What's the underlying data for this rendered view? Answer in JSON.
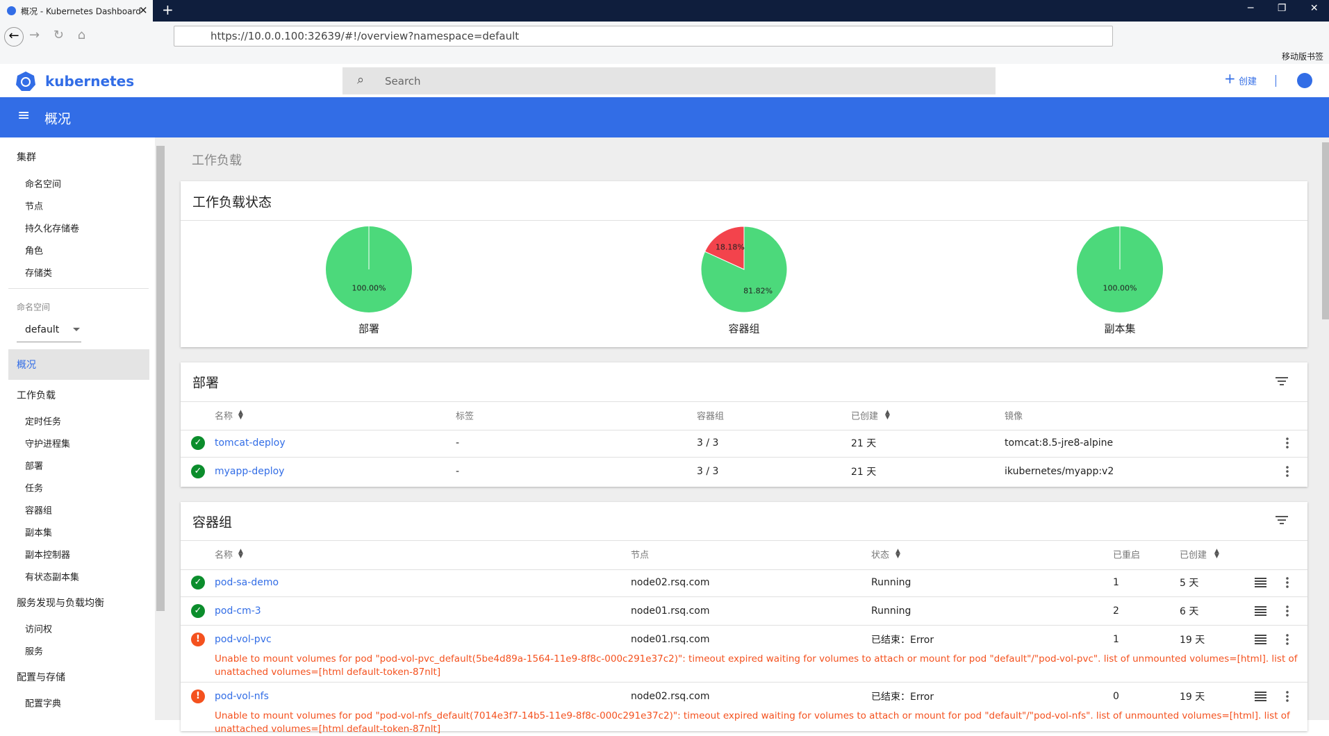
{
  "browser": {
    "tab_title": "概况 - Kubernetes Dashboard",
    "url": "https://10.0.0.100:32639/#!/overview?namespace=default",
    "bookmark": "移动版书签"
  },
  "header": {
    "logo": "kubernetes",
    "search": "Search",
    "create": "创建"
  },
  "toolbar": {
    "title": "概况"
  },
  "sidebar": {
    "cluster": {
      "title": "集群",
      "items": [
        "命名空间",
        "节点",
        "持久化存储卷",
        "角色",
        "存储类"
      ]
    },
    "namespace_label": "命名空间",
    "namespace": "default",
    "overview": "概况",
    "groups": [
      {
        "title": "工作负载",
        "items": [
          "定时任务",
          "守护进程集",
          "部署",
          "任务",
          "容器组",
          "副本集",
          "副本控制器",
          "有状态副本集"
        ]
      },
      {
        "title": "服务发现与负载均衡",
        "items": [
          "访问权",
          "服务"
        ]
      },
      {
        "title": "配置与存储",
        "items": [
          "配置字典"
        ]
      }
    ]
  },
  "breadcrumb": "工作负载",
  "status": {
    "title": "工作负载状态",
    "charts": [
      {
        "type": "pie",
        "label": "部署",
        "values": [
          100
        ],
        "value_labels": [
          "100.00%"
        ],
        "colors": [
          "#4cd97b"
        ]
      },
      {
        "type": "pie",
        "label": "容器组",
        "values": [
          81.82,
          18.18
        ],
        "value_labels": [
          "81.82%",
          "18.18%"
        ],
        "colors": [
          "#4cd97b",
          "#f3434c"
        ]
      },
      {
        "type": "pie",
        "label": "副本集",
        "values": [
          100
        ],
        "value_labels": [
          "100.00%"
        ],
        "colors": [
          "#4cd97b"
        ]
      }
    ]
  },
  "deployments": {
    "title": "部署",
    "headers": [
      "名称",
      "标签",
      "容器组",
      "已创建",
      "镜像"
    ],
    "rows": [
      {
        "icon": "ok",
        "name": "tomcat-deploy",
        "labels": "-",
        "pods": "3 / 3",
        "created": "21 天",
        "image": "tomcat:8.5-jre8-alpine"
      },
      {
        "icon": "ok",
        "name": "myapp-deploy",
        "labels": "-",
        "pods": "3 / 3",
        "created": "21 天",
        "image": "ikubernetes/myapp:v2"
      }
    ]
  },
  "pods": {
    "title": "容器组",
    "headers": [
      "名称",
      "节点",
      "状态",
      "已重启",
      "已创建"
    ],
    "rows": [
      {
        "icon": "ok",
        "name": "pod-sa-demo",
        "node": "node02.rsq.com",
        "status": "Running",
        "restarts": 1,
        "created": "5 天"
      },
      {
        "icon": "ok",
        "name": "pod-cm-3",
        "node": "node01.rsq.com",
        "status": "Running",
        "restarts": 2,
        "created": "6 天"
      },
      {
        "icon": "error",
        "name": "pod-vol-pvc",
        "node": "node01.rsq.com",
        "status": "已结束：Error",
        "restarts": 1,
        "created": "19 天",
        "message": "Unable to mount volumes for pod \"pod-vol-pvc_default(5be4d89a-1564-11e9-8f8c-000c291e37c2)\": timeout expired waiting for volumes to attach or mount for pod \"default\"/\"pod-vol-pvc\". list of unmounted volumes=[html]. list of unattached volumes=[html default-token-87nlt]"
      },
      {
        "icon": "error",
        "name": "pod-vol-nfs",
        "node": "node02.rsq.com",
        "status": "已结束：Error",
        "restarts": 0,
        "created": "19 天",
        "message": "Unable to mount volumes for pod \"pod-vol-nfs_default(7014e3f7-14b5-11e9-8f8c-000c291e37c2)\": timeout expired waiting for volumes to attach or mount for pod \"default\"/\"pod-vol-nfs\". list of unmounted volumes=[html]. list of unattached volumes=[html default-token-87nlt]"
      }
    ]
  }
}
